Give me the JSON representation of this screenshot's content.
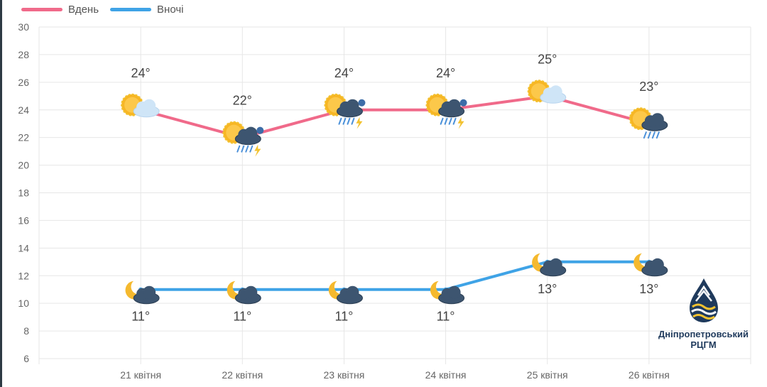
{
  "legend": [
    {
      "name": "Вдень",
      "color": "#f06a8a"
    },
    {
      "name": "Вночі",
      "color": "#3fa3e6"
    }
  ],
  "logo": {
    "line1": "Дніпропетровський",
    "line2": "РЦГМ",
    "icon": "water-drop-logo-icon"
  },
  "chart_data": {
    "type": "line",
    "title": "",
    "xlabel": "",
    "ylabel": "",
    "categories": [
      "21 квітня",
      "22 квітня",
      "23 квітня",
      "24 квітня",
      "25 квітня",
      "26 квітня"
    ],
    "ylim": [
      6,
      30
    ],
    "yticks": [
      6,
      8,
      10,
      12,
      14,
      16,
      18,
      20,
      22,
      24,
      26,
      28,
      30
    ],
    "grid": true,
    "legend_position": "top-left",
    "series": [
      {
        "name": "Вдень",
        "color": "#f06a8a",
        "values": [
          24,
          22,
          24,
          24,
          25,
          23
        ],
        "labels": [
          "24°",
          "22°",
          "24°",
          "24°",
          "25°",
          "23°"
        ],
        "icons": [
          "sun-cloud-icon",
          "sun-thunderstorm-icon",
          "sun-thunderstorm-icon",
          "sun-thunderstorm-icon",
          "sun-cloud-icon",
          "sun-rain-icon"
        ]
      },
      {
        "name": "Вночі",
        "color": "#3fa3e6",
        "values": [
          11,
          11,
          11,
          11,
          13,
          13
        ],
        "labels": [
          "11°",
          "11°",
          "11°",
          "11°",
          "13°",
          "13°"
        ],
        "icons": [
          "moon-cloud-icon",
          "moon-cloud-icon",
          "moon-cloud-icon",
          "moon-cloud-icon",
          "moon-cloud-icon",
          "moon-cloud-icon"
        ]
      }
    ]
  }
}
